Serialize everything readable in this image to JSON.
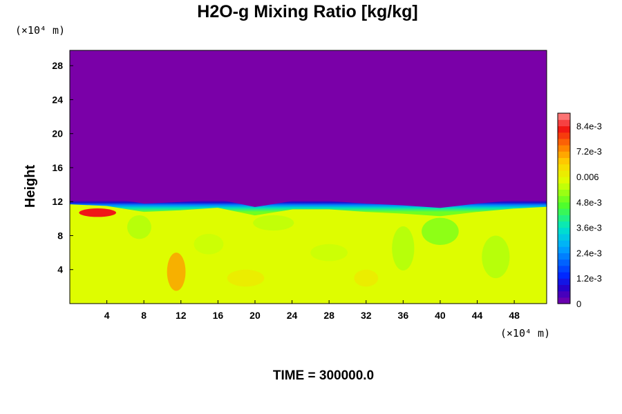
{
  "chart_data": {
    "type": "heatmap",
    "title": "H2O-g Mixing Ratio [kg/kg]",
    "xlabel": "",
    "ylabel": "Height",
    "x_unit": "(×10⁴ m)",
    "y_unit": "(×10⁴ m)",
    "xlim": [
      0,
      51.5
    ],
    "ylim": [
      0,
      29.8
    ],
    "x_ticks": [
      4,
      8,
      12,
      16,
      20,
      24,
      28,
      32,
      36,
      40,
      44,
      48
    ],
    "y_ticks": [
      4,
      8,
      12,
      16,
      20,
      24,
      28
    ],
    "colorbar": {
      "range": [
        0,
        0.009
      ],
      "tick_values": [
        0,
        0.0012,
        0.0024,
        0.0036,
        0.0048,
        0.006,
        0.0072,
        0.0084
      ],
      "tick_labels": [
        "0",
        "1.2e-3",
        "2.4e-3",
        "3.6e-3",
        "4.8e-3",
        "0.006",
        "7.2e-3",
        "8.4e-3"
      ]
    },
    "field_summary": {
      "upper_layer_value": 0,
      "lower_layer_value": 0.0058,
      "interface_height": [
        0,
        12.5,
        4,
        12.3,
        8,
        11.6,
        12,
        11.8,
        16,
        12.1,
        20,
        11.2,
        24,
        11.9,
        28,
        11.9,
        32,
        11.6,
        36,
        11.4,
        40,
        11.1,
        44,
        11.6,
        48,
        12.0,
        51.5,
        12.2
      ],
      "moist_patch": {
        "x": [
          1,
          5
        ],
        "y": [
          10.2,
          11.2
        ],
        "value": 0.0083
      },
      "rising_plume": {
        "x": [
          10.5,
          12.5
        ],
        "y": [
          1.5,
          6
        ],
        "value": 0.0072
      }
    }
  },
  "footer": {
    "time_label": "TIME = 300000.0"
  },
  "colors": {
    "background": "#ffffff",
    "upper": "#7a00a8",
    "lower": "#d9ff00"
  }
}
